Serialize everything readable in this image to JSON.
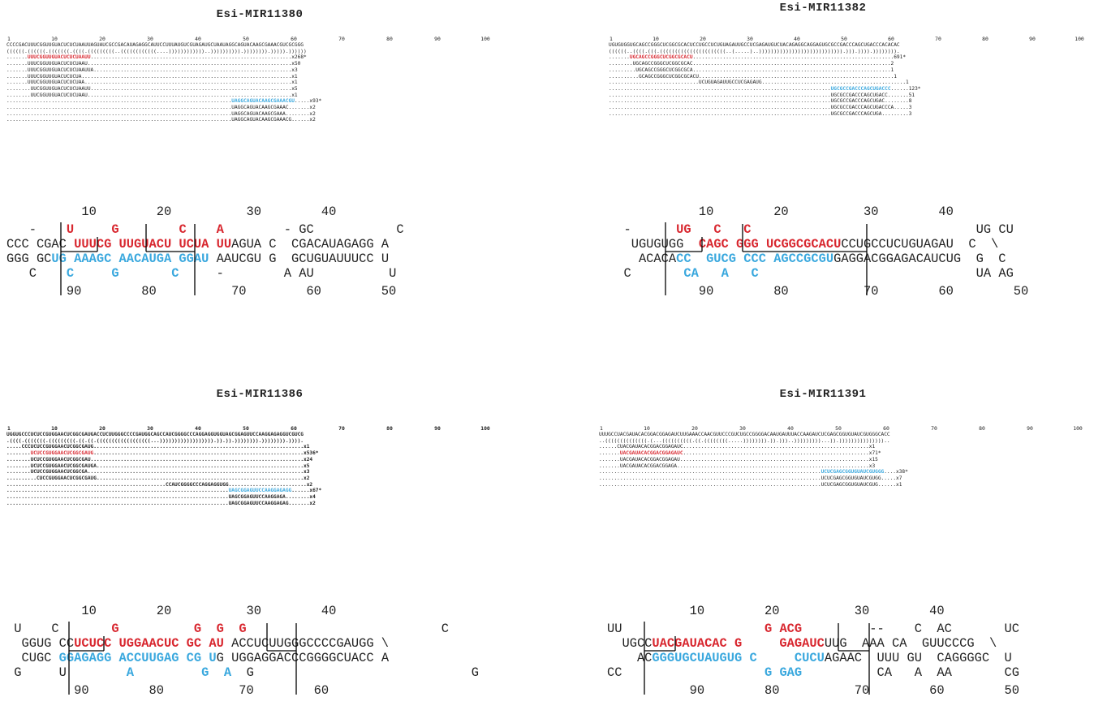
{
  "colors": {
    "mature": "#d8272f",
    "star": "#3aa8de",
    "text": "#222222",
    "bracket": "#000000"
  },
  "panels": [
    {
      "id": "p1",
      "title": "Esi-MIR11380",
      "ruler": [
        "1",
        "10",
        "20",
        "30",
        "40",
        "50",
        "60",
        "70",
        "80",
        "90",
        "100"
      ],
      "sequence": "CCCCGACUUUCGGUUGUACUCUCUAAUUAGUAUCGCCGACAUAGAGGCAUUCCUUUAUGUCGUAGAUGCUAAUAGGCAGUACAAGCGAAACGUCGCGGG",
      "structure": "((((((.((((((.(((((((.((((.(((((((((..((((((((((((....))))))))))))..)))))))))).)))))))).))))).))))))",
      "reads": [
        {
          "pre": ".......",
          "seq": "UUUCGGUUGUACUCUCUAAUU",
          "post": "...................................................................",
          "count": "x268*",
          "cls": "red"
        },
        {
          "pre": ".......",
          "seq": "UUUCGGUUGUACUCUCUAAU",
          "post": "....................................................................",
          "count": "x50",
          "cls": ""
        },
        {
          "pre": ".......",
          "seq": "UUUCGGUUGUACUCUCUAAUUA",
          "post": "..................................................................",
          "count": "x3",
          "cls": ""
        },
        {
          "pre": ".......",
          "seq": "UUUCGGUUGUACUCUCUA",
          "post": "......................................................................",
          "count": "x1",
          "cls": ""
        },
        {
          "pre": ".......",
          "seq": "UUUCGGUUGUACUCUCUAA",
          "post": ".....................................................................",
          "count": "x1",
          "cls": ""
        },
        {
          "pre": "........",
          "seq": "UUCGGUUGUACUCUCUAAUU",
          "post": "...................................................................",
          "count": "x5",
          "cls": ""
        },
        {
          "pre": "........",
          "seq": "UUCGGUUGUACUCUCUAAU",
          "post": "....................................................................",
          "count": "x1",
          "cls": ""
        },
        {
          "pre": "...........................................................................",
          "seq": "UAGGCAGUACAAGCGAAACGU",
          "post": ".....",
          "count": "x93*",
          "cls": "blue"
        },
        {
          "pre": "...........................................................................",
          "seq": "UAGGCAGUACAAGCGAAAC",
          "post": ".......",
          "count": "x2",
          "cls": ""
        },
        {
          "pre": "...........................................................................",
          "seq": "UAGGCAGUACAAGCGAAA",
          "post": "........",
          "count": "x2",
          "cls": ""
        },
        {
          "pre": "...........................................................................",
          "seq": "UAGGCAGUACAAGCGAAACG",
          "post": "......",
          "count": "x2",
          "cls": ""
        }
      ],
      "hairpin": {
        "pos_top": "          10        20          30        40",
        "line1": [
          {
            "t": "   -    "
          },
          {
            "t": "U",
            "c": "red"
          },
          {
            "t": "     "
          },
          {
            "t": "G",
            "c": "red"
          },
          {
            "t": "        "
          },
          {
            "t": "C",
            "c": "red"
          },
          {
            "t": "    "
          },
          {
            "t": "A",
            "c": "red"
          },
          {
            "t": "        - GC           C"
          }
        ],
        "line2": [
          {
            "t": "CCC CGAC "
          },
          {
            "t": "UUUCG UUGUACU UCUA UU",
            "c": "red"
          },
          {
            "t": "AGUA C  CGACAUAGAGG A"
          }
        ],
        "line3": [
          {
            "t": "GGG GC"
          },
          {
            "t": "UG AAAGC AACAUGA GGAU",
            "c": "blue"
          },
          {
            "t": " AAUCGU G  GCUGUAUUUCC U"
          }
        ],
        "line4": [
          {
            "t": "   C    "
          },
          {
            "t": "C",
            "c": "blue"
          },
          {
            "t": "     "
          },
          {
            "t": "G",
            "c": "blue"
          },
          {
            "t": "       "
          },
          {
            "t": "C",
            "c": "blue"
          },
          {
            "t": "     -        A AU          U"
          }
        ],
        "pos_bottom": "        90        80          70        60        50"
      }
    },
    {
      "id": "p2",
      "title": "Esi-MIR11382",
      "ruler": [
        "1",
        "10",
        "20",
        "30",
        "40",
        "50",
        "60",
        "70",
        "80",
        "90",
        "100"
      ],
      "sequence": "UGUGUGGUGCAGCCGGGCUCGGCGCACUCCUGCCUCUGUAGAUUGCCUCGAGAUGUCUACAGAGGCAGGAGUGCGCCGACCCAGCUGACCCACACAC",
      "structure": "((((((..((((.(((.((((((((((((((((((((((..(.....)..)))))))))))))))))))))))))))).))).)))).)))))))).",
      "reads": [
        {
          "pre": ".......",
          "seq": "UGCAGCCGGGCUCGGCGCACU",
          "post": "...................................................................",
          "count": "691*",
          "cls": "red"
        },
        {
          "pre": "........",
          "seq": "UGCAGCCGGGCUCGGCGCAC",
          "post": "..................................................................",
          "count": "2",
          "cls": ""
        },
        {
          "pre": ".........",
          "seq": "UGCAGCCGGGCUCGGCGCA",
          "post": "..................................................................",
          "count": "1",
          "cls": ""
        },
        {
          "pre": "..........",
          "seq": "GCAGCCGGGCUCGGCGCACU",
          "post": ".................................................................",
          "count": "1",
          "cls": ""
        },
        {
          "pre": "..............................",
          "seq": "UCUGUAGAUUGCCUCGAGAUG",
          "post": "................................................",
          "count": "1",
          "cls": ""
        },
        {
          "pre": "..........................................................................",
          "seq": "UGCGCCGACCCAGCUGACCC",
          "post": "......",
          "count": "123*",
          "cls": "blue"
        },
        {
          "pre": "..........................................................................",
          "seq": "UGCGCCGACCCAGCUGACC",
          "post": ".......",
          "count": "51",
          "cls": ""
        },
        {
          "pre": "..........................................................................",
          "seq": "UGCGCCGACCCAGCUGAC",
          "post": "........",
          "count": "8",
          "cls": ""
        },
        {
          "pre": "..........................................................................",
          "seq": "UGCGCCGACCCAGCUGACCCA",
          "post": ".....",
          "count": "3",
          "cls": ""
        },
        {
          "pre": "..........................................................................",
          "seq": "UGCGCCGACCCAGCUGA",
          "post": ".........",
          "count": "3",
          "cls": ""
        }
      ],
      "hairpin": {
        "pos_top": "            10        20          30        40",
        "line1": [
          {
            "t": "  -      "
          },
          {
            "t": "UG",
            "c": "red"
          },
          {
            "t": "   "
          },
          {
            "t": "C",
            "c": "red"
          },
          {
            "t": "   "
          },
          {
            "t": "C",
            "c": "red"
          },
          {
            "t": "                              UG CU"
          }
        ],
        "line2": [
          {
            "t": "   UGUGUGG  "
          },
          {
            "t": "CAGC GGG UCGGCGCACU",
            "c": "red"
          },
          {
            "t": "CCUGCCUCUGUAGAU  C  \\"
          }
        ],
        "line3": [
          {
            "t": "    ACACA"
          },
          {
            "t": "CC  GUCG CCC AGCCGCGU",
            "c": "blue"
          },
          {
            "t": "GAGGACGGAGACAUCUG  G  C"
          }
        ],
        "line4": [
          {
            "t": "  C       "
          },
          {
            "t": "CA",
            "c": "blue"
          },
          {
            "t": "   "
          },
          {
            "t": "A",
            "c": "blue"
          },
          {
            "t": "   "
          },
          {
            "t": "C",
            "c": "blue"
          },
          {
            "t": "                             UA AG"
          }
        ],
        "pos_bottom": "            90        80          70        60        50"
      }
    },
    {
      "id": "p3",
      "title": "Esi-MIR11386",
      "ruler": [
        "1",
        "10",
        "20",
        "30",
        "40",
        "50",
        "60",
        "70",
        "80",
        "90",
        "100"
      ],
      "sequence": "UGGUGCCCUCUCCGUGGAACUCGGCGAUGACCUCUUGGGCCCCGAUGGCAGCCAUCGGGGCCCAGGAGGUGGUAGCGGAGUUCCAAGGAGAGGUCGUCG",
      "structure": ".((((.(((((((.(((((((((.((.((.((((((((((((((((((...)))))))))))))))))).)).)).)))))))).)))))))).)))).",
      "reads": [
        {
          "pre": ".....",
          "seq": "CCCUCUCCGUGGAACUCGGCGAUG",
          "post": "......................................................................",
          "count": "x1",
          "cls": ""
        },
        {
          "pre": "........",
          "seq": "UCUCCGUGGAACUCGGCGAUG",
          "post": "......................................................................",
          "count": "x536*",
          "cls": "red"
        },
        {
          "pre": "........",
          "seq": "UCUCCGUGGAACUCGGCGAU",
          "post": ".......................................................................",
          "count": "x24",
          "cls": ""
        },
        {
          "pre": "........",
          "seq": "UCUCCGUGGAACUCGGCGAUGA",
          "post": ".....................................................................",
          "count": "x5",
          "cls": ""
        },
        {
          "pre": "........",
          "seq": "UCUCCGUGGAACUCGGCGA",
          "post": "........................................................................",
          "count": "x3",
          "cls": ""
        },
        {
          "pre": "..........",
          "seq": "CUCCGUGGAACUCGGCGAUG",
          "post": ".....................................................................",
          "count": "x2",
          "cls": ""
        },
        {
          "pre": ".....................................................",
          "seq": "CCAUCGGGGCCCAGGAGGUGG",
          "post": "..........................",
          "count": "x2",
          "cls": ""
        },
        {
          "pre": "..........................................................................",
          "seq": "UAGCGGAGUUCCAAGGAGAGG",
          "post": "......",
          "count": "x67*",
          "cls": "blue"
        },
        {
          "pre": "..........................................................................",
          "seq": "UAGCGGAGUUCCAAGGAGA",
          "post": "........",
          "count": "x4",
          "cls": ""
        },
        {
          "pre": "..........................................................................",
          "seq": "UAGCGGAGUUCCAAGGAGAG",
          "post": ".......",
          "count": "x2",
          "cls": ""
        }
      ],
      "hairpin": {
        "pos_top": "          10        20          30        40",
        "line1": [
          {
            "t": " U    C       "
          },
          {
            "t": "G",
            "c": "red"
          },
          {
            "t": "          "
          },
          {
            "t": "G",
            "c": "red"
          },
          {
            "t": "  "
          },
          {
            "t": "G",
            "c": "red"
          },
          {
            "t": "  "
          },
          {
            "t": "G",
            "c": "red"
          },
          {
            "t": "                          C"
          }
        ],
        "line2": [
          {
            "t": "  GGUG CC"
          },
          {
            "t": "UCUCC UGGAACUC GC AU",
            "c": "red"
          },
          {
            "t": " ACCUCUUGGGCCCCGAUGG \\"
          }
        ],
        "line3": [
          {
            "t": "  CUGC "
          },
          {
            "t": "GGAGAGG ACCUUGAG CG U",
            "c": "blue"
          },
          {
            "t": "G UGGAGGACCCGGGGCUACC A"
          }
        ],
        "line4": [
          {
            "t": " G     U        "
          },
          {
            "t": "A",
            "c": "blue"
          },
          {
            "t": "         "
          },
          {
            "t": "G",
            "c": "blue"
          },
          {
            "t": "  "
          },
          {
            "t": "A",
            "c": "blue"
          },
          {
            "t": "  G                             G"
          }
        ],
        "pos_bottom": "         90        80          70        60"
      }
    },
    {
      "id": "p4",
      "title": "Esi-MIR11391",
      "ruler": [
        "1",
        "10",
        "20",
        "30",
        "40",
        "50",
        "60",
        "70",
        "80",
        "90",
        "100"
      ],
      "sequence": "UUUGCCUACGAUACACGGACGGAGAUCUUGAAACCAACGUUCCCGUCUGCCGGGGACAAUGAUUUACCAAGAUCUCGAGCGGUGUAUCGUGGGCACC",
      "structure": "..((((((((((((((.(...((((((((((.((.((((((((.....)))))))).)).)))..)))))))))...)).)))))))))))))))..",
      "reads": [
        {
          "pre": "......",
          "seq": "CUACGAUACACGGACGGAGAUC",
          "post": "..............................................................",
          "count": "x1",
          "cls": ""
        },
        {
          "pre": ".......",
          "seq": "UACGAUACACGGACGGAGAUC",
          "post": "..............................................................",
          "count": "x71*",
          "cls": "red"
        },
        {
          "pre": ".......",
          "seq": "UACGAUACACGGACGGAGAU",
          "post": "...............................................................",
          "count": "x15",
          "cls": ""
        },
        {
          "pre": ".......",
          "seq": "UACGAUACACGGACGGAGA",
          "post": "................................................................",
          "count": "x3",
          "cls": ""
        },
        {
          "pre": "..........................................................................",
          "seq": "UCUCGAGCGGUGUAUCGUGGG",
          "post": "....",
          "count": "x38*",
          "cls": "blue"
        },
        {
          "pre": "..........................................................................",
          "seq": "UCUCGAGCGGUGUAUCGUGG",
          "post": ".....",
          "count": "x7",
          "cls": ""
        },
        {
          "pre": "..........................................................................",
          "seq": "UCUCGAGCGGUGUAUCGUG",
          "post": "......",
          "count": "x1",
          "cls": ""
        }
      ],
      "hairpin": {
        "pos_top": "           10        20          30        40",
        "line1": [
          {
            "t": "UU                   "
          },
          {
            "t": "G ACG",
            "c": "red"
          },
          {
            "t": "         --    C  AC       UC"
          }
        ],
        "line2": [
          {
            "t": "  UGCC"
          },
          {
            "t": "UACGAUACAC G     GAGAUC",
            "c": "red"
          },
          {
            "t": "UUG  AAA CA  GUUCCCG  \\"
          }
        ],
        "line3": [
          {
            "t": "    AC"
          },
          {
            "t": "GGGUGCUAUGUG C     CUCU",
            "c": "blue"
          },
          {
            "t": "AGAAC  UUU GU  CAGGGGC  U"
          }
        ],
        "line4": [
          {
            "t": "CC                   "
          },
          {
            "t": "G GAG",
            "c": "blue"
          },
          {
            "t": "          CA   A  AA       CG"
          }
        ],
        "pos_bottom": "           90        80          70        60        50"
      }
    }
  ]
}
